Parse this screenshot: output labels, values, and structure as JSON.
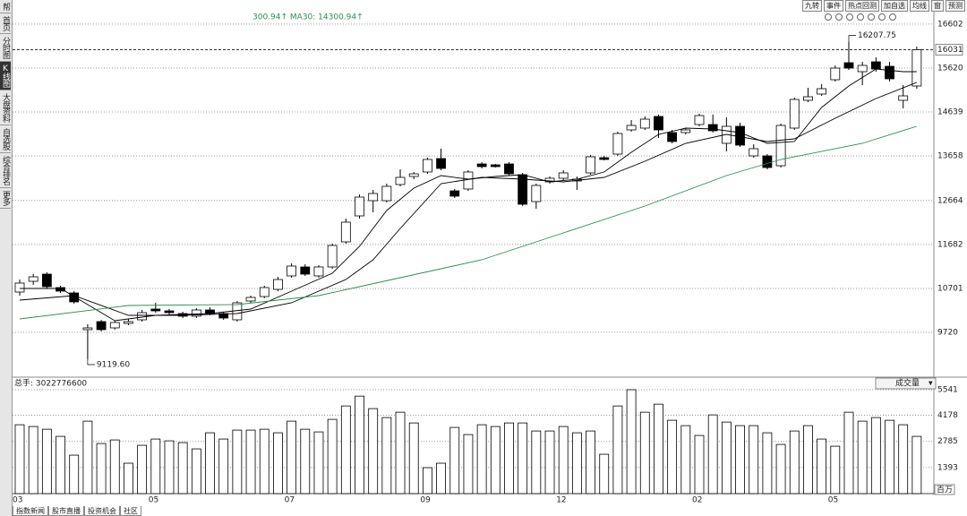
{
  "ui": {
    "sidebar": [
      "帮",
      "首页",
      "分时图",
      "K线图",
      "大盘资料",
      "自选股",
      "综合排名",
      "更多"
    ],
    "toolbar": [
      "九转",
      "事件",
      "热点回测",
      "加自选",
      "均线",
      "窗",
      "预测"
    ],
    "ma_text": "300.94↑ MA30: 14300.94↑",
    "bottom_tabs": [
      "指数新闻",
      "股市直播",
      "投资机会",
      "社区"
    ]
  },
  "chart_data": [
    {
      "type": "candlestick",
      "categories": [
        "03",
        null,
        null,
        null,
        null,
        null,
        null,
        null,
        null,
        null,
        "05",
        null,
        null,
        null,
        null,
        null,
        null,
        null,
        null,
        null,
        "07",
        null,
        null,
        null,
        null,
        null,
        null,
        null,
        null,
        null,
        "09",
        null,
        null,
        null,
        null,
        null,
        null,
        null,
        null,
        null,
        "12",
        null,
        null,
        null,
        null,
        null,
        null,
        null,
        null,
        null,
        "02",
        null,
        null,
        null,
        null,
        null,
        null,
        null,
        null,
        null,
        "05",
        null,
        null,
        null,
        null,
        null,
        null
      ],
      "open": [
        10620,
        10860,
        11020,
        10720,
        10600,
        9780,
        9960,
        9820,
        9920,
        10000,
        10240,
        10200,
        10140,
        10080,
        10220,
        10140,
        10000,
        10420,
        10520,
        10680,
        10980,
        11180,
        10980,
        11180,
        11740,
        12320,
        12660,
        12660,
        13020,
        13200,
        13300,
        13600,
        12880,
        12920,
        13480,
        13460,
        13480,
        13240,
        12640,
        13080,
        13160,
        13100,
        13280,
        13620,
        13700,
        14240,
        14280,
        14540,
        14180,
        14180,
        14360,
        14360,
        13940,
        14320,
        13660,
        13660,
        13440,
        14280,
        14900,
        15040,
        15360,
        15740,
        15540,
        15760,
        15660,
        14900,
        15220
      ],
      "high": [
        10900,
        11020,
        11060,
        10760,
        10640,
        9900,
        10000,
        9980,
        10020,
        10220,
        10380,
        10240,
        10180,
        10260,
        10280,
        10180,
        10420,
        10540,
        10760,
        10960,
        11260,
        11240,
        11220,
        11700,
        12260,
        12800,
        12900,
        13040,
        13360,
        13300,
        13620,
        13820,
        12920,
        13340,
        13520,
        13480,
        13520,
        13280,
        13040,
        13200,
        13340,
        13200,
        13680,
        13660,
        14200,
        14460,
        14540,
        14580,
        14240,
        14280,
        14600,
        14580,
        14520,
        14400,
        13920,
        13700,
        14380,
        14960,
        15180,
        15260,
        15680,
        16207.75,
        15760,
        15860,
        15760,
        15240,
        16100
      ],
      "low": [
        10540,
        10780,
        10700,
        10600,
        10360,
        9119.6,
        9740,
        9780,
        9880,
        9960,
        10160,
        10120,
        10040,
        10040,
        10100,
        10000,
        9960,
        10380,
        10480,
        10640,
        10940,
        10980,
        10940,
        11140,
        11700,
        12260,
        12400,
        12620,
        12980,
        13140,
        13260,
        13340,
        12720,
        12880,
        13380,
        13400,
        13220,
        12540,
        12480,
        13040,
        13120,
        12900,
        13240,
        13560,
        13660,
        14200,
        14240,
        14060,
        13940,
        14140,
        14320,
        14180,
        13760,
        13860,
        13620,
        13360,
        13400,
        14240,
        14860,
        15000,
        15320,
        15580,
        15240,
        15540,
        15320,
        14720,
        15160
      ],
      "close": [
        10820,
        10960,
        10740,
        10640,
        10400,
        9820,
        9780,
        9940,
        9960,
        10160,
        10200,
        10160,
        10080,
        10220,
        10140,
        10040,
        10380,
        10500,
        10720,
        10900,
        11200,
        11020,
        11180,
        11660,
        12180,
        12740,
        12820,
        12980,
        13180,
        13260,
        13580,
        13380,
        12760,
        13300,
        13420,
        13420,
        13260,
        12580,
        13000,
        13160,
        13280,
        13140,
        13640,
        13580,
        14160,
        14340,
        14480,
        14240,
        13980,
        14240,
        14560,
        14220,
        14320,
        13900,
        13820,
        13400,
        14340,
        14920,
        14980,
        15160,
        15620,
        15620,
        15680,
        15600,
        15380,
        15000,
        16031
      ],
      "lines": [
        {
          "color": "#000000",
          "x": [
            0,
            3,
            5,
            7,
            10,
            14,
            17,
            20,
            23,
            25,
            27,
            29,
            31,
            33,
            35,
            37,
            39,
            41,
            43,
            45,
            47,
            49,
            51,
            53,
            55,
            57,
            59,
            61,
            63,
            65,
            66
          ],
          "values": [
            10700,
            10700,
            10340,
            9980,
            10100,
            10140,
            10240,
            10640,
            11040,
            11640,
            12440,
            12940,
            13220,
            13140,
            13200,
            13240,
            13080,
            13140,
            13300,
            13740,
            14140,
            14280,
            14260,
            14180,
            13940,
            13980,
            14740,
            15220,
            15600,
            15540,
            15540
          ]
        },
        {
          "color": "#000000",
          "x": [
            0,
            4,
            8,
            12,
            16,
            20,
            24,
            26,
            28,
            31,
            34,
            37,
            40,
            43,
            46,
            49,
            52,
            55,
            57,
            60,
            63,
            66
          ],
          "values": [
            10440,
            10540,
            10100,
            10100,
            10140,
            10380,
            10900,
            11340,
            12040,
            13040,
            13180,
            13140,
            13080,
            13180,
            13540,
            13940,
            14140,
            13980,
            14040,
            14500,
            14940,
            15300
          ]
        },
        {
          "color": "#2e8b57",
          "x": [
            0,
            8,
            16,
            22,
            28,
            34,
            40,
            46,
            52,
            56,
            62,
            66
          ],
          "values": [
            10020,
            10320,
            10340,
            10540,
            10940,
            11340,
            11940,
            12540,
            13220,
            13580,
            13940,
            14320
          ]
        }
      ],
      "ylim": [
        8720,
        16800
      ],
      "yticks": [
        9720,
        10701,
        11682,
        12664,
        13658,
        14639,
        15620,
        16602
      ],
      "price_line": 16031,
      "annotations": [
        {
          "value": 16207.75,
          "label": "16207.75"
        },
        {
          "value": 9119.6,
          "label": "9119.60"
        }
      ]
    },
    {
      "type": "bar",
      "title": "总手: 3022776600",
      "selector": "成交量",
      "unit": "百万",
      "values": [
        3673,
        3578,
        3434,
        3053,
        2051,
        3864,
        2671,
        2862,
        1622,
        2576,
        2910,
        2814,
        2719,
        2385,
        3244,
        2910,
        3387,
        3387,
        3434,
        3244,
        3864,
        3434,
        3291,
        3959,
        4675,
        5199,
        4532,
        4055,
        4341,
        3768,
        1383,
        1622,
        3530,
        3148,
        3673,
        3578,
        3768,
        3768,
        3339,
        3339,
        3578,
        3244,
        3339,
        2099,
        4675,
        5541,
        4341,
        4770,
        3911,
        3625,
        3101,
        4198,
        3816,
        3625,
        3625,
        3244,
        2623,
        3339,
        3625,
        2910,
        2528,
        4341,
        3864,
        4055,
        3911,
        3673,
        3053
      ],
      "ylim": [
        0,
        5780
      ],
      "yticks": [
        1393,
        2785,
        4178,
        5541
      ]
    }
  ]
}
